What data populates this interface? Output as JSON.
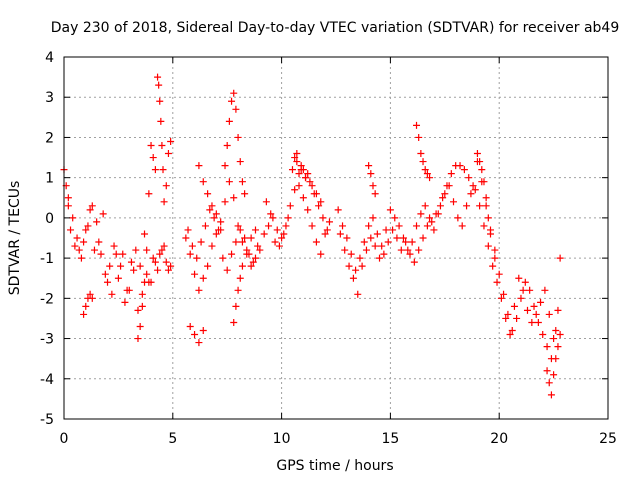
{
  "chart_data": {
    "type": "scatter",
    "title": "Day 230 of 2018, Sidereal Day-to-day VTEC variation (SDTVAR) for receiver ab49",
    "xlabel": "GPS time / hours",
    "ylabel": "SDTVAR / TECUs",
    "xlim": [
      0,
      25
    ],
    "ylim": [
      -5,
      4
    ],
    "x_ticks": [
      "0",
      "5",
      "10",
      "15",
      "20",
      "25"
    ],
    "y_ticks": [
      "-5",
      "-4",
      "-3",
      "-2",
      "-1",
      "0",
      "1",
      "2",
      "3",
      "4"
    ],
    "grid": true,
    "marker": "+",
    "color": "#ff0000",
    "series": [
      {
        "name": "SDTVAR",
        "x": [
          0.0,
          0.1,
          0.2,
          0.3,
          0.5,
          0.7,
          0.9,
          1.1,
          1.3,
          1.5,
          1.7,
          1.9,
          2.1,
          2.3,
          2.5,
          2.7,
          2.9,
          3.1,
          3.3,
          3.5,
          3.7,
          3.9,
          4.1,
          4.3,
          4.5,
          4.7,
          4.9,
          0.2,
          0.4,
          0.6,
          0.8,
          1.0,
          1.2,
          1.4,
          1.6,
          1.8,
          2.0,
          2.2,
          2.4,
          2.6,
          2.8,
          3.0,
          3.2,
          3.4,
          3.6,
          3.8,
          4.0,
          4.2,
          4.4,
          4.6,
          4.8,
          0.9,
          1.0,
          1.1,
          1.2,
          1.3,
          3.4,
          3.5,
          3.6,
          3.7,
          3.8,
          3.9,
          4.0,
          4.1,
          4.2,
          4.3,
          4.35,
          4.4,
          4.45,
          4.5,
          4.55,
          4.6,
          4.7,
          4.8,
          4.9,
          5.6,
          5.8,
          6.0,
          6.2,
          6.4,
          6.6,
          6.8,
          7.0,
          7.2,
          7.4,
          7.6,
          7.8,
          8.0,
          8.2,
          8.4,
          8.6,
          8.8,
          9.0,
          5.7,
          5.9,
          6.1,
          6.3,
          6.5,
          6.7,
          6.9,
          7.1,
          7.3,
          7.5,
          7.7,
          7.9,
          8.1,
          8.3,
          8.5,
          8.7,
          8.9,
          5.8,
          6.0,
          6.2,
          6.4,
          6.2,
          6.4,
          6.6,
          6.8,
          7.0,
          7.2,
          7.4,
          7.5,
          7.6,
          7.7,
          7.8,
          7.9,
          8.0,
          8.1,
          8.2,
          8.3,
          7.8,
          7.9,
          8.0,
          8.1,
          8.2,
          8.4,
          8.6,
          8.8,
          9.2,
          9.4,
          9.6,
          9.8,
          10.0,
          10.2,
          10.4,
          10.6,
          10.8,
          11.0,
          11.2,
          11.4,
          11.6,
          11.8,
          12.0,
          12.2,
          9.3,
          9.5,
          9.7,
          9.9,
          10.1,
          10.3,
          10.5,
          10.7,
          10.9,
          11.1,
          11.3,
          11.5,
          11.7,
          11.9,
          12.1,
          10.6,
          10.7,
          10.8,
          10.9,
          11.0,
          11.1,
          11.2,
          11.4,
          11.6,
          11.8,
          12.6,
          12.8,
          13.0,
          13.2,
          13.4,
          13.6,
          13.8,
          14.0,
          14.2,
          14.4,
          14.6,
          14.8,
          15.0,
          15.2,
          15.4,
          15.6,
          15.8,
          16.0,
          16.2,
          16.4,
          16.6,
          16.8,
          17.0,
          17.2,
          17.4,
          17.6,
          17.8,
          18.0,
          18.2,
          18.4,
          18.6,
          18.8,
          19.0,
          19.2,
          19.4,
          19.6,
          19.8,
          12.7,
          12.9,
          13.1,
          13.3,
          13.5,
          13.7,
          13.9,
          14.1,
          14.3,
          14.5,
          14.7,
          14.9,
          15.1,
          15.3,
          15.5,
          15.7,
          15.9,
          16.1,
          16.3,
          16.5,
          16.7,
          16.9,
          17.1,
          17.3,
          17.5,
          17.7,
          17.9,
          18.1,
          18.3,
          18.5,
          18.7,
          18.9,
          19.1,
          19.3,
          19.5,
          19.7,
          14.0,
          14.1,
          14.2,
          14.3,
          16.2,
          16.3,
          16.4,
          16.5,
          16.6,
          16.7,
          16.8,
          19.0,
          19.1,
          19.2,
          19.3,
          19.4,
          19.5,
          19.6,
          19.8,
          20.0,
          20.2,
          20.4,
          20.6,
          20.8,
          21.0,
          21.2,
          21.4,
          21.6,
          21.8,
          22.0,
          22.2,
          22.4,
          22.6,
          22.8,
          19.9,
          20.1,
          20.3,
          20.5,
          20.7,
          20.9,
          21.1,
          21.3,
          21.5,
          21.7,
          21.9,
          22.1,
          22.3,
          22.5,
          22.7,
          22.2,
          22.3,
          22.4,
          22.5,
          22.6,
          22.7,
          22.8
        ],
        "y": [
          1.2,
          0.8,
          0.3,
          -0.3,
          -0.7,
          -0.8,
          -0.6,
          -0.2,
          0.3,
          -0.1,
          -0.9,
          -1.4,
          -1.2,
          -0.7,
          -1.5,
          -0.9,
          -1.8,
          -1.1,
          -0.8,
          -1.2,
          -0.4,
          -1.6,
          -1.0,
          -1.3,
          -0.8,
          -1.1,
          -1.2,
          0.5,
          0.0,
          -0.5,
          -1.0,
          -0.3,
          0.2,
          -0.8,
          -0.6,
          0.1,
          -1.6,
          -1.9,
          -0.9,
          -1.2,
          -2.1,
          -1.8,
          -1.3,
          -2.3,
          -1.9,
          -1.4,
          -1.6,
          -1.1,
          -0.9,
          -0.7,
          -1.3,
          -2.4,
          -2.2,
          -2.0,
          -1.9,
          -2.0,
          -3.0,
          -2.7,
          -2.2,
          -1.6,
          -0.8,
          0.6,
          1.8,
          1.5,
          1.2,
          3.5,
          3.3,
          2.9,
          2.4,
          1.8,
          1.2,
          0.4,
          0.8,
          1.6,
          1.9,
          -0.5,
          -0.9,
          -1.4,
          -1.8,
          -1.5,
          -1.2,
          -0.7,
          -0.4,
          -0.1,
          0.4,
          0.9,
          0.5,
          -0.2,
          -0.6,
          -0.9,
          -1.2,
          -1.0,
          -0.8,
          -0.3,
          -0.7,
          -1.0,
          -0.6,
          -0.2,
          0.2,
          0.0,
          -0.3,
          -1.0,
          -1.3,
          -0.9,
          -0.6,
          -0.3,
          -0.5,
          -0.9,
          -1.1,
          -0.7,
          -2.7,
          -2.9,
          -3.1,
          -2.8,
          1.3,
          0.9,
          0.6,
          0.3,
          0.1,
          -0.3,
          1.3,
          1.8,
          2.4,
          2.9,
          3.1,
          2.7,
          2.0,
          1.4,
          0.9,
          0.6,
          -2.6,
          -2.2,
          -1.8,
          -1.5,
          -1.2,
          -0.8,
          -0.5,
          -0.3,
          -0.4,
          -0.2,
          0.0,
          -0.3,
          -0.5,
          -0.2,
          0.3,
          0.7,
          0.8,
          0.5,
          0.2,
          -0.2,
          -0.6,
          -0.9,
          -0.4,
          -0.1,
          0.4,
          0.1,
          -0.6,
          -0.7,
          -0.4,
          0.0,
          1.2,
          1.6,
          1.2,
          1.0,
          0.9,
          0.6,
          0.3,
          0.0,
          -0.3,
          1.5,
          1.4,
          1.1,
          1.3,
          1.2,
          1.0,
          1.1,
          0.8,
          0.6,
          0.4,
          0.2,
          -0.2,
          -0.5,
          -0.9,
          -1.3,
          -1.0,
          -0.6,
          -0.2,
          0.0,
          -0.4,
          -0.7,
          -0.3,
          0.2,
          0.0,
          -0.2,
          -0.5,
          -0.8,
          -0.6,
          -0.2,
          0.1,
          0.3,
          0.0,
          -0.3,
          0.1,
          0.5,
          0.8,
          1.1,
          1.3,
          1.3,
          1.2,
          1.0,
          0.8,
          1.4,
          0.9,
          0.3,
          -0.3,
          -0.8,
          -0.4,
          -0.8,
          -1.2,
          -1.5,
          -1.9,
          -1.2,
          -0.8,
          -0.5,
          -0.7,
          -1.0,
          -0.9,
          -0.6,
          -0.3,
          -0.5,
          -0.8,
          -0.6,
          -0.9,
          -1.1,
          -0.8,
          -0.5,
          -0.2,
          -0.1,
          0.1,
          0.3,
          0.6,
          0.8,
          0.4,
          0.0,
          -0.2,
          0.3,
          0.6,
          0.7,
          0.3,
          -0.2,
          -0.7,
          -1.2,
          1.3,
          1.1,
          0.8,
          0.6,
          2.3,
          2.0,
          1.6,
          1.4,
          1.2,
          1.1,
          1.0,
          1.6,
          1.4,
          1.2,
          0.9,
          0.5,
          0.0,
          -0.4,
          -1.0,
          -1.4,
          -1.9,
          -2.4,
          -2.8,
          -2.5,
          -2.0,
          -1.6,
          -1.8,
          -2.2,
          -2.6,
          -2.9,
          -3.2,
          -3.5,
          -2.8,
          -1.0,
          -1.6,
          -2.0,
          -2.5,
          -2.9,
          -2.2,
          -1.5,
          -1.8,
          -2.3,
          -2.6,
          -2.4,
          -2.1,
          -1.8,
          -2.4,
          -3.0,
          -2.3,
          -3.8,
          -4.1,
          -4.4,
          -3.9,
          -3.5,
          -3.2,
          -2.9
        ]
      }
    ]
  }
}
